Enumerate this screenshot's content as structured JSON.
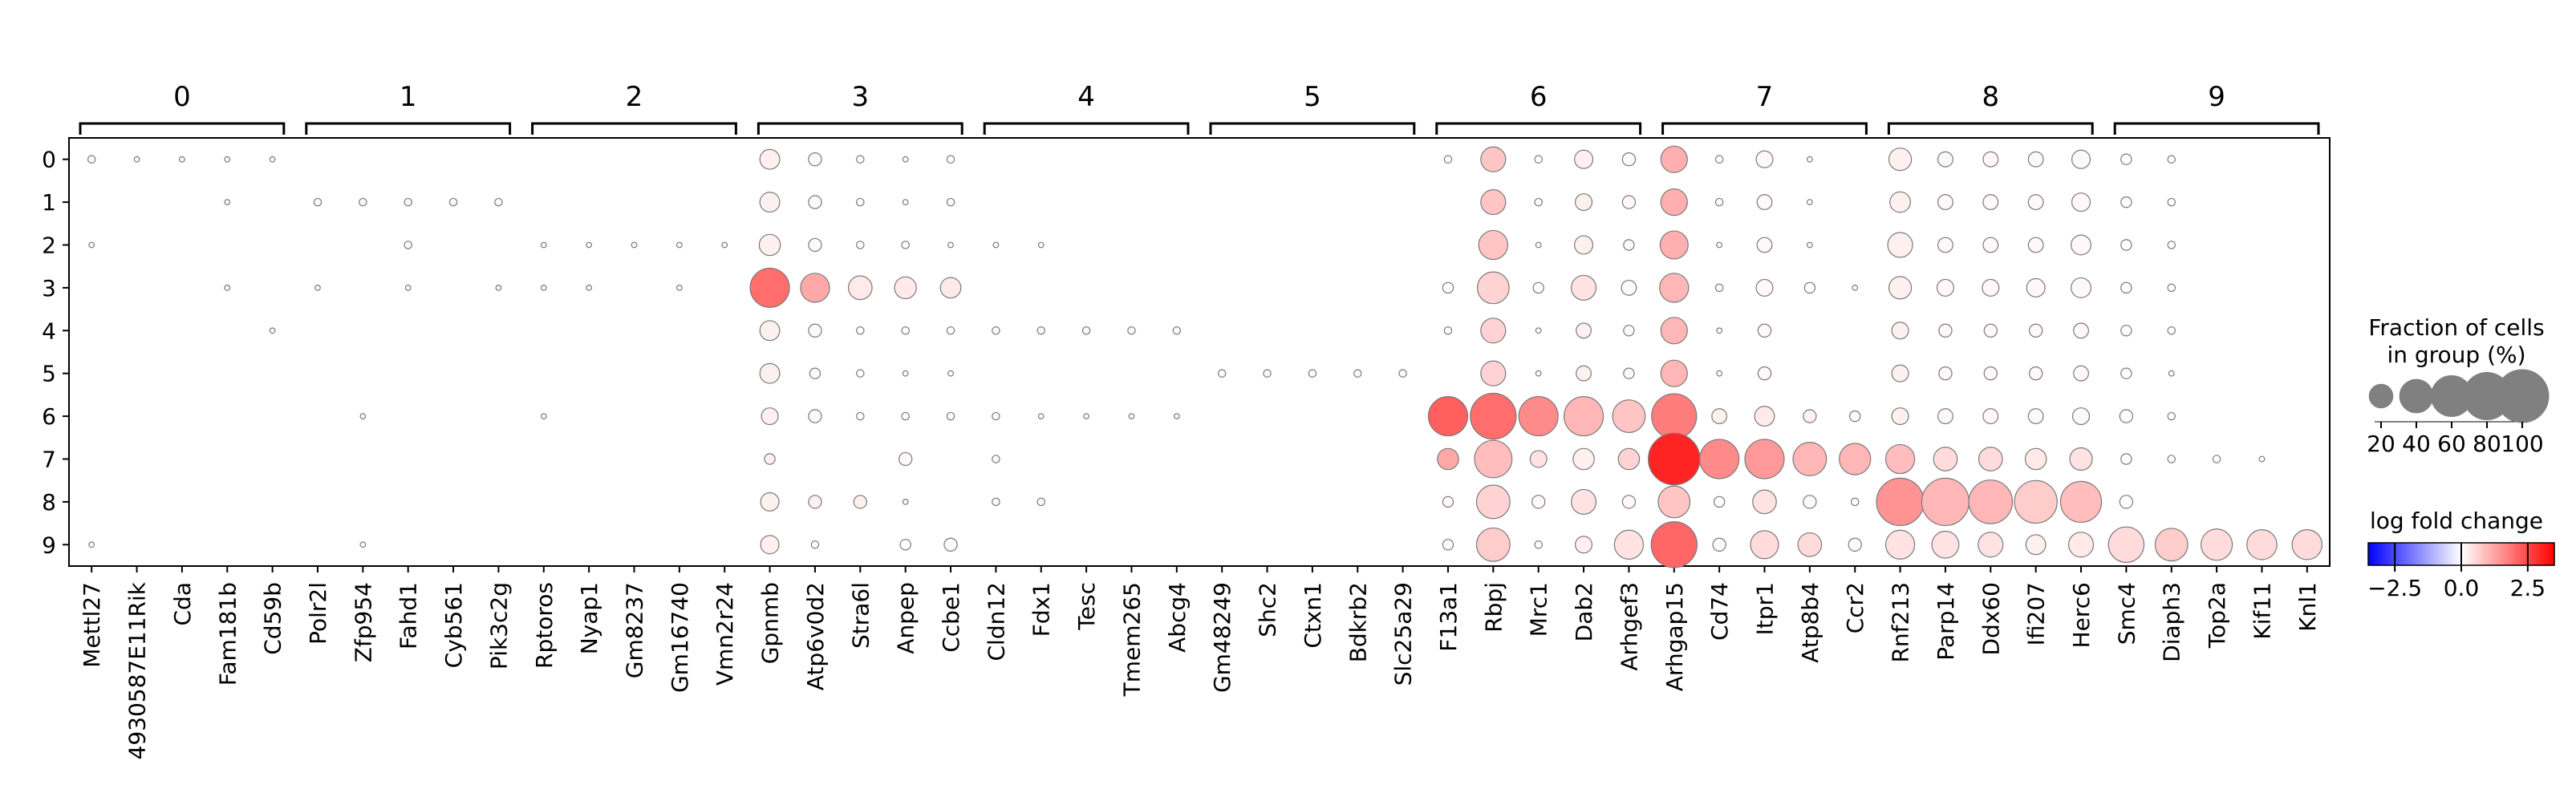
{
  "chart_data": {
    "type": "dotplot",
    "groups": [
      "0",
      "1",
      "2",
      "3",
      "4",
      "5",
      "6",
      "7",
      "8",
      "9"
    ],
    "gene_groups": [
      {
        "label": "0",
        "genes": [
          "Mettl27",
          "4930587E11Rik",
          "Cda",
          "Fam181b",
          "Cd59b"
        ]
      },
      {
        "label": "1",
        "genes": [
          "Polr2l",
          "Zfp954",
          "Fahd1",
          "Cyb561",
          "Pik3c2g"
        ]
      },
      {
        "label": "2",
        "genes": [
          "Rptoros",
          "Nyap1",
          "Gm8237",
          "Gm16740",
          "Vmn2r24"
        ]
      },
      {
        "label": "3",
        "genes": [
          "Gpnmb",
          "Atp6v0d2",
          "Stra6l",
          "Anpep",
          "Ccbe1"
        ]
      },
      {
        "label": "4",
        "genes": [
          "Cldn12",
          "Fdx1",
          "Tesc",
          "Tmem265",
          "Abcg4"
        ]
      },
      {
        "label": "5",
        "genes": [
          "Gm48249",
          "Shc2",
          "Ctxn1",
          "Bdkrb2",
          "Slc25a29"
        ]
      },
      {
        "label": "6",
        "genes": [
          "F13a1",
          "Rbpj",
          "Mrc1",
          "Dab2",
          "Arhgef3"
        ]
      },
      {
        "label": "7",
        "genes": [
          "Arhgap15",
          "Cd74",
          "Itpr1",
          "Atp8b4",
          "Ccr2"
        ]
      },
      {
        "label": "8",
        "genes": [
          "Rnf213",
          "Parp14",
          "Ddx60",
          "Ifi207",
          "Herc6"
        ]
      },
      {
        "label": "9",
        "genes": [
          "Smc4",
          "Diaph3",
          "Top2a",
          "Kif11",
          "Knl1"
        ]
      }
    ],
    "fraction": [
      [
        2,
        1,
        1,
        1,
        1,
        0,
        0,
        0,
        0,
        0,
        0,
        0,
        0,
        0,
        0,
        14,
        6,
        2,
        1,
        2,
        0,
        0,
        0,
        0,
        0,
        0,
        0,
        0,
        0,
        0,
        2,
        22,
        2,
        12,
        6,
        25,
        2,
        10,
        1,
        0,
        18,
        8,
        8,
        8,
        12,
        4,
        2,
        0,
        0,
        0
      ],
      [
        0,
        0,
        0,
        1,
        0,
        2,
        2,
        2,
        2,
        2,
        0,
        0,
        0,
        0,
        0,
        14,
        6,
        2,
        1,
        2,
        0,
        0,
        0,
        0,
        0,
        0,
        0,
        0,
        0,
        0,
        0,
        22,
        2,
        10,
        6,
        25,
        2,
        8,
        1,
        0,
        15,
        8,
        8,
        8,
        12,
        4,
        2,
        0,
        0,
        0
      ],
      [
        1,
        0,
        0,
        0,
        0,
        0,
        0,
        2,
        0,
        0,
        1,
        1,
        1,
        1,
        1,
        16,
        6,
        2,
        2,
        1,
        1,
        1,
        0,
        0,
        0,
        0,
        0,
        0,
        0,
        0,
        0,
        30,
        1,
        12,
        4,
        28,
        1,
        8,
        1,
        0,
        22,
        8,
        8,
        8,
        14,
        4,
        2,
        0,
        0,
        0
      ],
      [
        0,
        0,
        0,
        1,
        0,
        1,
        0,
        1,
        0,
        1,
        1,
        1,
        0,
        1,
        0,
        55,
        30,
        20,
        17,
        15,
        0,
        0,
        0,
        0,
        0,
        0,
        0,
        0,
        0,
        0,
        4,
        36,
        4,
        22,
        8,
        30,
        2,
        10,
        4,
        1,
        18,
        10,
        10,
        12,
        14,
        4,
        2,
        0,
        0,
        0
      ],
      [
        0,
        0,
        0,
        0,
        1,
        0,
        0,
        0,
        0,
        0,
        0,
        0,
        0,
        0,
        0,
        14,
        6,
        2,
        2,
        2,
        2,
        2,
        2,
        2,
        2,
        0,
        0,
        0,
        0,
        0,
        2,
        22,
        1,
        8,
        4,
        25,
        1,
        6,
        0,
        0,
        10,
        6,
        6,
        6,
        8,
        4,
        2,
        0,
        0,
        0
      ],
      [
        0,
        0,
        0,
        0,
        0,
        0,
        0,
        0,
        0,
        0,
        0,
        0,
        0,
        0,
        0,
        14,
        4,
        2,
        1,
        1,
        0,
        0,
        0,
        0,
        0,
        2,
        2,
        2,
        2,
        2,
        0,
        22,
        1,
        8,
        4,
        25,
        1,
        6,
        0,
        0,
        10,
        6,
        6,
        6,
        8,
        4,
        1,
        0,
        0,
        0
      ],
      [
        0,
        0,
        0,
        0,
        0,
        0,
        1,
        0,
        0,
        0,
        1,
        0,
        0,
        0,
        0,
        10,
        6,
        2,
        2,
        2,
        2,
        1,
        1,
        1,
        1,
        0,
        0,
        0,
        0,
        0,
        55,
        75,
        55,
        55,
        38,
        72,
        8,
        14,
        6,
        4,
        10,
        8,
        8,
        8,
        10,
        6,
        2,
        0,
        0,
        0
      ],
      [
        0,
        0,
        0,
        0,
        0,
        0,
        0,
        0,
        0,
        0,
        0,
        0,
        0,
        0,
        0,
        4,
        0,
        0,
        6,
        0,
        2,
        0,
        0,
        0,
        0,
        0,
        0,
        0,
        0,
        0,
        16,
        50,
        10,
        16,
        16,
        95,
        55,
        55,
        40,
        35,
        30,
        20,
        20,
        16,
        18,
        4,
        2,
        2,
        1,
        0
      ],
      [
        0,
        0,
        0,
        0,
        0,
        0,
        0,
        0,
        0,
        0,
        0,
        0,
        0,
        0,
        0,
        12,
        6,
        6,
        1,
        0,
        2,
        2,
        0,
        0,
        0,
        0,
        0,
        0,
        0,
        0,
        4,
        40,
        6,
        22,
        6,
        36,
        4,
        20,
        6,
        2,
        80,
        80,
        68,
        65,
        60,
        6,
        0,
        0,
        0,
        0
      ],
      [
        1,
        0,
        0,
        0,
        0,
        0,
        1,
        0,
        0,
        0,
        0,
        0,
        0,
        0,
        0,
        12,
        2,
        0,
        4,
        6,
        0,
        0,
        0,
        0,
        0,
        0,
        0,
        0,
        0,
        0,
        4,
        40,
        2,
        10,
        30,
        75,
        6,
        28,
        20,
        6,
        30,
        26,
        22,
        14,
        22,
        45,
        38,
        35,
        32,
        32
      ]
    ],
    "logfc": [
      [
        0.1,
        0.1,
        0.1,
        0.1,
        0.1,
        0,
        0,
        0,
        0,
        0,
        0,
        0,
        0,
        0,
        0,
        0.2,
        0.1,
        0,
        0,
        0,
        0,
        0,
        0,
        0,
        0,
        0,
        0,
        0,
        0,
        0,
        0,
        0.8,
        0,
        0.2,
        0.1,
        1.1,
        0,
        0.1,
        0,
        0,
        0.2,
        0.1,
        0.1,
        0.1,
        0.1,
        0,
        0,
        0,
        0,
        0
      ],
      [
        0,
        0,
        0,
        0.1,
        0,
        0.1,
        0.1,
        0.1,
        0.1,
        0.1,
        0,
        0,
        0,
        0,
        0,
        0.2,
        0.1,
        0,
        0,
        0,
        0,
        0,
        0,
        0,
        0,
        0,
        0,
        0,
        0,
        0,
        0,
        0.8,
        0,
        0.2,
        0.1,
        1.1,
        0,
        0.1,
        0,
        0,
        0.2,
        0.1,
        0.1,
        0.1,
        0.1,
        0,
        0,
        0,
        0,
        0
      ],
      [
        0.1,
        0,
        0,
        0,
        0,
        0,
        0,
        0.1,
        0,
        0,
        0.1,
        0.1,
        0.1,
        0.1,
        0.1,
        0.2,
        0.1,
        0,
        0,
        0,
        0,
        0,
        0,
        0,
        0,
        0,
        0,
        0,
        0,
        0,
        0,
        0.8,
        0,
        0.2,
        0.1,
        1.1,
        0,
        0.1,
        0,
        0,
        0.2,
        0.1,
        0.1,
        0.1,
        0.1,
        0,
        0,
        0,
        0,
        0
      ],
      [
        0,
        0,
        0,
        0.1,
        0,
        0.1,
        0,
        0.1,
        0,
        0.1,
        0.1,
        0.1,
        0,
        0.1,
        0,
        2.0,
        1.2,
        0.3,
        0.3,
        0.3,
        0,
        0,
        0,
        0,
        0,
        0,
        0,
        0,
        0,
        0,
        0,
        0.6,
        0,
        0.4,
        0.1,
        1.0,
        0,
        0.1,
        0,
        0,
        0.2,
        0.1,
        0.1,
        0.1,
        0.1,
        0,
        0,
        0,
        0,
        0
      ],
      [
        0,
        0,
        0,
        0,
        0.1,
        0,
        0,
        0,
        0,
        0,
        0,
        0,
        0,
        0,
        0,
        0.2,
        0.1,
        0,
        0,
        0,
        0.1,
        0.1,
        0.1,
        0.1,
        0.1,
        0,
        0,
        0,
        0,
        0,
        0,
        0.6,
        0,
        0.2,
        0.1,
        1.0,
        0,
        0.1,
        0,
        0,
        0.2,
        0.1,
        0.1,
        0.1,
        0.1,
        0,
        0,
        0,
        0,
        0
      ],
      [
        0,
        0,
        0,
        0,
        0,
        0,
        0,
        0,
        0,
        0,
        0,
        0,
        0,
        0,
        0,
        0.2,
        0.1,
        0,
        0,
        0,
        0,
        0,
        0,
        0,
        0,
        0.1,
        0.1,
        0.1,
        0.1,
        0.1,
        0,
        0.6,
        0,
        0.2,
        0.1,
        1.0,
        0,
        0.1,
        0,
        0,
        0.2,
        0.1,
        0.1,
        0.1,
        0.1,
        0,
        0,
        0,
        0,
        0
      ],
      [
        0,
        0,
        0,
        0,
        0,
        0,
        0.1,
        0,
        0,
        0,
        0.1,
        0,
        0,
        0,
        0,
        0.2,
        0.1,
        0,
        0,
        0,
        0.1,
        0.1,
        0.1,
        0.1,
        0.1,
        0,
        0,
        0,
        0,
        0,
        2.2,
        2.0,
        1.6,
        1.0,
        0.8,
        1.8,
        0.2,
        0.3,
        0.2,
        0.1,
        0.2,
        0.1,
        0.1,
        0.1,
        0.1,
        0,
        0,
        0,
        0,
        0
      ],
      [
        0,
        0,
        0,
        0,
        0,
        0,
        0,
        0,
        0,
        0,
        0,
        0,
        0,
        0,
        0,
        0.2,
        0,
        0,
        0.1,
        0,
        0.1,
        0,
        0,
        0,
        0,
        0,
        0,
        0,
        0,
        0,
        1.2,
        0.9,
        0.4,
        0.2,
        0.6,
        3.0,
        1.6,
        1.4,
        1.0,
        1.0,
        0.9,
        0.5,
        0.5,
        0.3,
        0.4,
        0,
        0,
        0,
        0,
        0
      ],
      [
        0,
        0,
        0,
        0,
        0,
        0,
        0,
        0,
        0,
        0,
        0,
        0,
        0,
        0,
        0,
        0.2,
        0.2,
        0.2,
        0,
        0,
        0.1,
        0.1,
        0,
        0,
        0,
        0,
        0,
        0,
        0,
        0,
        0.1,
        0.6,
        0.1,
        0.4,
        0.1,
        0.8,
        0,
        0.4,
        0.1,
        0,
        1.5,
        1.0,
        1.0,
        0.7,
        0.9,
        0,
        0,
        0,
        0,
        0
      ],
      [
        0.1,
        0,
        0,
        0,
        0,
        0,
        0.1,
        0,
        0,
        0,
        0,
        0,
        0,
        0,
        0,
        0.2,
        0,
        0,
        0,
        0.1,
        0,
        0,
        0,
        0,
        0,
        0,
        0,
        0,
        0,
        0,
        0.1,
        0.7,
        0,
        0.2,
        0.4,
        2.1,
        0.1,
        0.5,
        0.5,
        0.1,
        0.4,
        0.4,
        0.4,
        0.2,
        0.3,
        0.5,
        0.7,
        0.5,
        0.5,
        0.5
      ]
    ],
    "size_legend": {
      "title": "Fraction of cells\nin group (%)",
      "values": [
        20,
        40,
        60,
        80,
        100
      ],
      "tick_labels": [
        "20",
        "40",
        "60",
        "80",
        "100"
      ]
    },
    "color_legend": {
      "title": "log fold change",
      "range": [
        -3.5,
        3.5
      ],
      "ticks": [
        -2.5,
        0.0,
        2.5
      ],
      "tick_labels": [
        "−2.5",
        "0.0",
        "2.5"
      ],
      "colormap": "bwr"
    },
    "ylabels": [
      "0",
      "1",
      "2",
      "3",
      "4",
      "5",
      "6",
      "7",
      "8",
      "9"
    ]
  }
}
